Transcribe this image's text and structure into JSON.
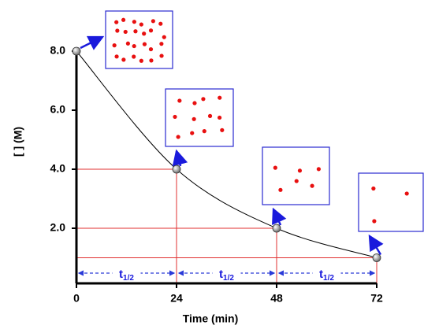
{
  "chart_data": {
    "type": "line",
    "x_label": "Time (min)",
    "y_label": "[ ] (M)",
    "half_life_label": {
      "symbol": "t",
      "subscript": "1/2"
    },
    "x": [
      0,
      24,
      48,
      72
    ],
    "series": [
      {
        "values": [
          8,
          4,
          2,
          1
        ],
        "color": "#000000"
      }
    ],
    "xlim": [
      0,
      72
    ],
    "ylim": [
      0,
      8
    ],
    "xticks": [
      0,
      24,
      48,
      72
    ],
    "yticks": [
      {
        "value": 2,
        "label": "2.0"
      },
      {
        "value": 4,
        "label": "4.0"
      },
      {
        "value": 6,
        "label": "6.0"
      },
      {
        "value": 8,
        "label": "8.0"
      }
    ]
  }
}
